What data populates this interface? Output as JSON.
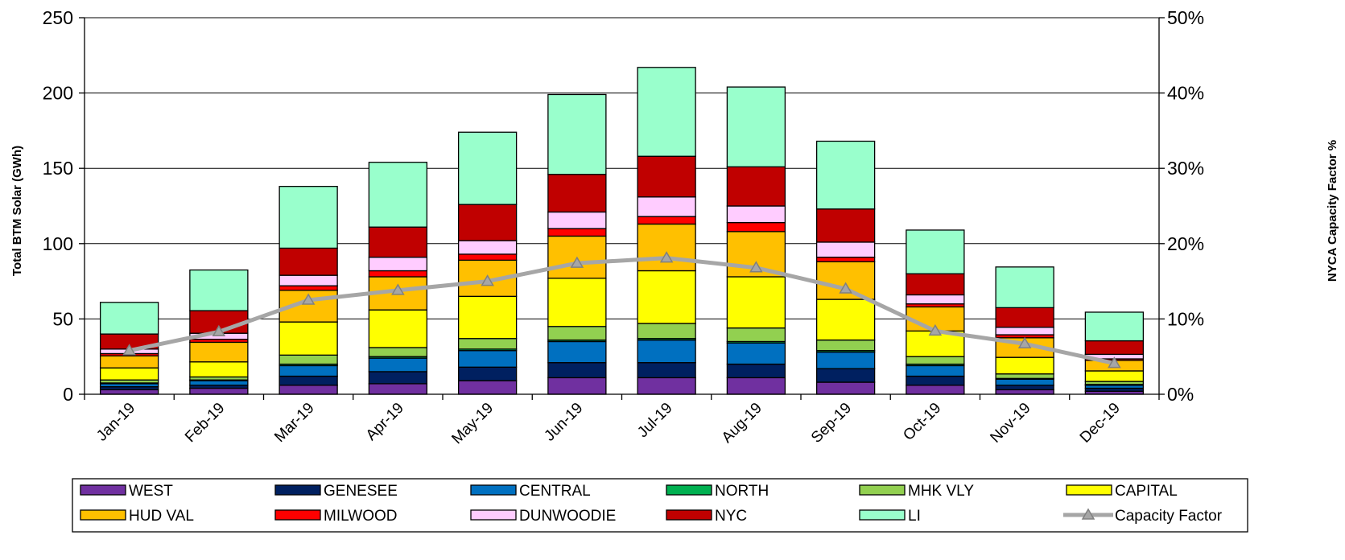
{
  "chart_data": {
    "type": "bar",
    "stacked": true,
    "categories": [
      "Jan-19",
      "Feb-19",
      "Mar-19",
      "Apr-19",
      "May-19",
      "Jun-19",
      "Jul-19",
      "Aug-19",
      "Sep-19",
      "Oct-19",
      "Nov-19",
      "Dec-19"
    ],
    "ylabel": "Total BTM Solar (GWh)",
    "y2label": "NYCA Capacity Factor %",
    "ylim": [
      0,
      250
    ],
    "yticks": [
      0,
      50,
      100,
      150,
      200,
      250
    ],
    "y2lim": [
      0,
      50
    ],
    "y2ticks": [
      "0%",
      "10%",
      "20%",
      "30%",
      "40%",
      "50%"
    ],
    "grid": "horizontal",
    "legend_position": "bottom",
    "series": [
      {
        "name": "WEST",
        "color": "#7030A0",
        "values": [
          3,
          4,
          6,
          7,
          9,
          11,
          11,
          11,
          8,
          6,
          3,
          2
        ]
      },
      {
        "name": "GENESEE",
        "color": "#002060",
        "values": [
          2,
          2,
          6,
          8,
          9,
          10,
          10,
          9,
          9,
          6,
          3,
          2
        ]
      },
      {
        "name": "CENTRAL",
        "color": "#0070C0",
        "values": [
          2,
          3,
          7,
          9,
          11,
          14,
          15,
          14,
          11,
          7,
          4,
          2
        ]
      },
      {
        "name": "NORTH",
        "color": "#00B050",
        "values": [
          0.5,
          0.5,
          1,
          1,
          1,
          1,
          1,
          1,
          1,
          1,
          0.5,
          0.5
        ]
      },
      {
        "name": "MHK VLY",
        "color": "#92D050",
        "values": [
          2,
          2,
          6,
          6,
          7,
          9,
          10,
          9,
          7,
          5,
          3,
          2
        ]
      },
      {
        "name": "CAPITAL",
        "color": "#FFFF00",
        "values": [
          8,
          10,
          22,
          25,
          28,
          32,
          35,
          34,
          27,
          17,
          11,
          7
        ]
      },
      {
        "name": "HUD VAL",
        "color": "#FFC000",
        "values": [
          8,
          13,
          21,
          22,
          24,
          28,
          31,
          30,
          25,
          16,
          13,
          7
        ]
      },
      {
        "name": "MILWOOD",
        "color": "#FF0000",
        "values": [
          1.5,
          2,
          3,
          4,
          4,
          5,
          5,
          6,
          3,
          2,
          2,
          1
        ]
      },
      {
        "name": "DUNWOODIE",
        "color": "#FFCCFF",
        "values": [
          3,
          4,
          7,
          9,
          9,
          11,
          13,
          11,
          10,
          6,
          5,
          3
        ]
      },
      {
        "name": "NYC",
        "color": "#C00000",
        "values": [
          10,
          15,
          18,
          20,
          24,
          25,
          27,
          26,
          22,
          14,
          13,
          9
        ]
      },
      {
        "name": "LI",
        "color": "#99FFCC",
        "values": [
          21,
          27,
          41,
          43,
          48,
          53,
          59,
          53,
          45,
          29,
          27,
          19
        ]
      }
    ],
    "line_series": {
      "name": "Capacity Factor",
      "color": "#A6A6A6",
      "axis": "right",
      "values": [
        5.8,
        8.3,
        12.5,
        13.8,
        15.0,
        17.4,
        18.1,
        16.8,
        14.0,
        8.4,
        6.7,
        4.1
      ]
    }
  }
}
